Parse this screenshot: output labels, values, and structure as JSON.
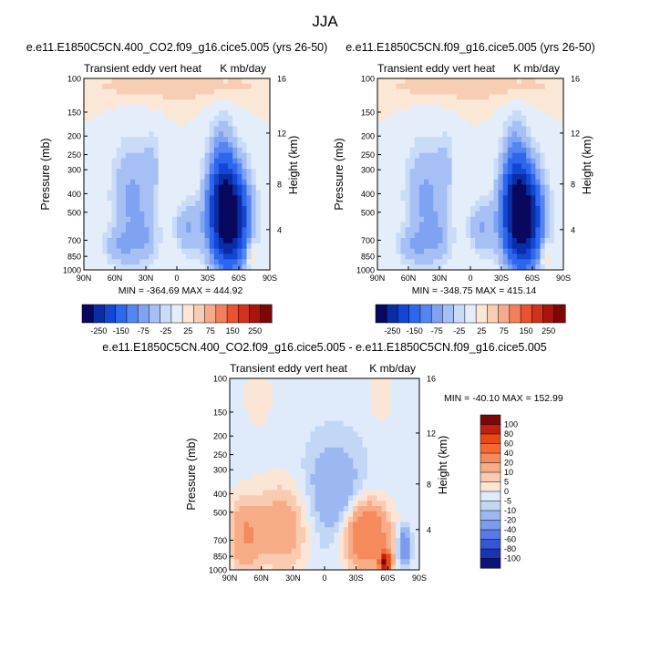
{
  "figure": {
    "title": "JJA"
  },
  "chart_data": [
    {
      "type": "heatmap",
      "title": "e.e11.E1850C5CN.400_CO2.f09_g16.cice5.005 (yrs 26-50)",
      "left_string": "Transient eddy vert heat",
      "right_string": "K mb/day",
      "ylabel": "Pressure (mb)",
      "ylabel_right": "Height (km)",
      "x_ticks": [
        "90N",
        "60N",
        "30N",
        "0",
        "30S",
        "60S",
        "90S"
      ],
      "y_ticks": [
        "100",
        "150",
        "200",
        "250",
        "300",
        "400",
        "500",
        "700",
        "850",
        "1000"
      ],
      "y_right_ticks": [
        "16",
        "12",
        "8",
        "4"
      ],
      "y_scale": "log",
      "ylim": [
        1000,
        100
      ],
      "min_max_label": "MIN = -364.69   MAX = 444.92",
      "min": -364.69,
      "max": 444.92,
      "colorbar_levels": [
        "-250",
        "-150",
        "-75",
        "-25",
        "25",
        "75",
        "150",
        "250"
      ]
    },
    {
      "type": "heatmap",
      "title": "e.e11.E1850C5CN.f09_g16.cice5.005 (yrs 26-50)",
      "left_string": "Transient eddy vert heat",
      "right_string": "K mb/day",
      "ylabel": "Pressure (mb)",
      "ylabel_right": "Height (km)",
      "x_ticks": [
        "90N",
        "60N",
        "30N",
        "0",
        "30S",
        "60S",
        "90S"
      ],
      "y_ticks": [
        "100",
        "150",
        "200",
        "250",
        "300",
        "400",
        "500",
        "700",
        "850",
        "1000"
      ],
      "y_right_ticks": [
        "16",
        "12",
        "8",
        "4"
      ],
      "y_scale": "log",
      "ylim": [
        1000,
        100
      ],
      "min_max_label": "MIN = -348.75   MAX = 415.14",
      "min": -348.75,
      "max": 415.14,
      "colorbar_levels": [
        "-250",
        "-150",
        "-75",
        "-25",
        "25",
        "75",
        "150",
        "250"
      ]
    },
    {
      "type": "heatmap",
      "title": "e.e11.E1850C5CN.400_CO2.f09_g16.cice5.005 - e.e11.E1850C5CN.f09_g16.cice5.005",
      "left_string": "Transient eddy vert heat",
      "right_string": "K mb/day",
      "ylabel": "Pressure (mb)",
      "ylabel_right": "Height (km)",
      "x_ticks": [
        "90N",
        "60N",
        "30N",
        "0",
        "30S",
        "60S",
        "90S"
      ],
      "y_ticks": [
        "100",
        "150",
        "200",
        "250",
        "300",
        "400",
        "500",
        "700",
        "850",
        "1000"
      ],
      "y_right_ticks": [
        "16",
        "12",
        "8",
        "4"
      ],
      "y_scale": "log",
      "ylim": [
        1000,
        100
      ],
      "min_max_label": "MIN = -40.10   MAX = 152.99",
      "min": -40.1,
      "max": 152.99,
      "colorbar_levels": [
        "100",
        "80",
        "60",
        "40",
        "20",
        "10",
        "5",
        "0",
        "-5",
        "-10",
        "-20",
        "-40",
        "-60",
        "-80",
        "-100"
      ]
    }
  ],
  "colors": {
    "abs_scale": [
      "#08085e",
      "#0a2da3",
      "#1446d6",
      "#2d67ee",
      "#5585f0",
      "#7fa3f2",
      "#a6c0f5",
      "#c9dbf7",
      "#e3eefa",
      "#fbe7d6",
      "#f7cdb3",
      "#f5ab89",
      "#f2805c",
      "#e9532f",
      "#d0321c",
      "#a8150d",
      "#7c0707"
    ],
    "diff_scale": [
      "#7c0707",
      "#c0200d",
      "#e84a16",
      "#f36a32",
      "#f58a5c",
      "#f7ac88",
      "#f9cbb0",
      "#fbe6d6",
      "#dfebfa",
      "#c2d6f6",
      "#9db8f1",
      "#7b9ced",
      "#5879e6",
      "#3556d6",
      "#1b33b3",
      "#0c137b"
    ]
  }
}
